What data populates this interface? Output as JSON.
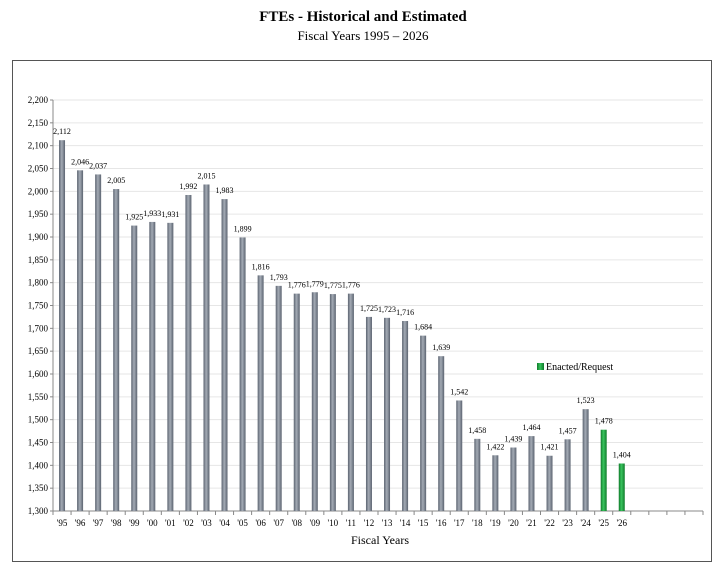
{
  "chart_data": {
    "type": "bar",
    "title": "FTEs - Historical and Estimated",
    "subtitle": "Fiscal Years 1995 – 2026",
    "xlabel": "Fiscal Years",
    "ylabel": "",
    "ylim": [
      1300,
      2200
    ],
    "ytick_step": 50,
    "ytick_labels": [
      "1,300",
      "1,350",
      "1,400",
      "1,450",
      "1,500",
      "1,550",
      "1,600",
      "1,650",
      "1,700",
      "1,750",
      "1,800",
      "1,850",
      "1,900",
      "1,950",
      "2,000",
      "2,050",
      "2,100",
      "2,150",
      "2,200"
    ],
    "categories": [
      "'95",
      "'96",
      "'97",
      "'98",
      "'99",
      "'00",
      "'01",
      "'02",
      "'03",
      "'04",
      "'05",
      "'06",
      "'07",
      "'08",
      "'09",
      "'10",
      "'11",
      "'12",
      "'13",
      "'14",
      "'15",
      "'16",
      "'17",
      "'18",
      "'19",
      "'20",
      "'21",
      "'22",
      "'23",
      "'24",
      "'25",
      "'26"
    ],
    "values": [
      2112,
      2046,
      2037,
      2005,
      1925,
      1933,
      1931,
      1992,
      2015,
      1983,
      1899,
      1816,
      1793,
      1776,
      1779,
      1775,
      1776,
      1725,
      1723,
      1716,
      1684,
      1639,
      1542,
      1458,
      1422,
      1439,
      1464,
      1421,
      1457,
      1523,
      1478,
      1404
    ],
    "value_labels": [
      "2,112",
      "2,046",
      "2,037",
      "2,005",
      "1,925",
      "1,933",
      "1,931",
      "1,992",
      "2,015",
      "1,983",
      "1,899",
      "1,816",
      "1,793",
      "1,776",
      "1,779",
      "1,775",
      "1,776",
      "1,725",
      "1,723",
      "1,716",
      "1,684",
      "1,639",
      "1,542",
      "1,458",
      "1,422",
      "1,439",
      "1,464",
      "1,421",
      "1,457",
      "1,523",
      "1,478",
      "1,404"
    ],
    "series_kind": [
      "actual",
      "actual",
      "actual",
      "actual",
      "actual",
      "actual",
      "actual",
      "actual",
      "actual",
      "actual",
      "actual",
      "actual",
      "actual",
      "actual",
      "actual",
      "actual",
      "actual",
      "actual",
      "actual",
      "actual",
      "actual",
      "actual",
      "actual",
      "actual",
      "actual",
      "actual",
      "actual",
      "actual",
      "actual",
      "actual",
      "enacted",
      "enacted"
    ],
    "legend": [
      {
        "name": "Enacted/Request",
        "color": "#1a9a3a"
      }
    ],
    "legend_position": "right",
    "colors": {
      "actual": "#7d8590",
      "enacted": "#1a9a3a",
      "grid": "#e6e6e6",
      "axis": "#888888"
    },
    "extra_empty_slots": 4
  }
}
